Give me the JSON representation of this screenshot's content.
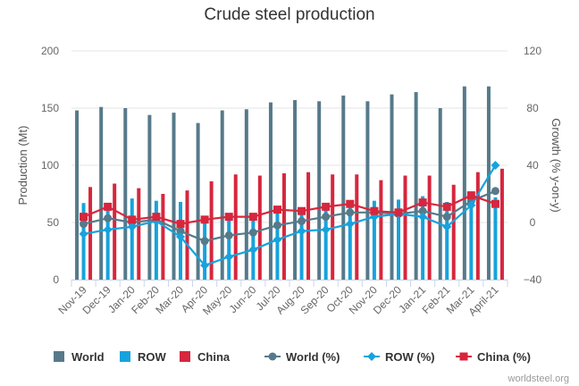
{
  "credit": "worldsteel.org",
  "colors": {
    "world": "#567a8a",
    "row": "#16a3dd",
    "china": "#d7263d",
    "grid": "#e6e6e6",
    "axis": "#ccd6eb"
  },
  "chart_data": {
    "type": "bar",
    "title": "Crude steel production",
    "ylabel": "Production (Mt)",
    "y2label": "Growth (% y-on-y)",
    "ylim": [
      0,
      200
    ],
    "y2lim": [
      -40,
      120
    ],
    "yticks": [
      "0",
      "50",
      "100",
      "150",
      "200"
    ],
    "y2ticks": [
      "−40",
      "0",
      "40",
      "80",
      "120"
    ],
    "grid": true,
    "legend_position": "bottom",
    "categories": [
      "Nov-19",
      "Dec-19",
      "Jan-20",
      "Feb-20",
      "Mar-20",
      "Apr-20",
      "May-20",
      "Jun-20",
      "Jul-20",
      "Aug-20",
      "Sep-20",
      "Oct-20",
      "Nov-20",
      "Dec-20",
      "Jan-21",
      "Feb-21",
      "Mar-21",
      "April-21"
    ],
    "series": [
      {
        "name": "World",
        "kind": "bar",
        "axis": "left",
        "color": "#567a8a",
        "values": [
          148,
          151,
          150,
          144,
          146,
          137,
          148,
          149,
          155,
          157,
          156,
          161,
          156,
          162,
          164,
          150,
          169,
          169
        ]
      },
      {
        "name": "ROW",
        "kind": "bar",
        "axis": "left",
        "color": "#16a3dd",
        "values": [
          67,
          67,
          71,
          69,
          68,
          50,
          57,
          58,
          60,
          61,
          64,
          68,
          69,
          70,
          73,
          68,
          77,
          72
        ]
      },
      {
        "name": "China",
        "kind": "bar",
        "axis": "left",
        "color": "#d7263d",
        "values": [
          81,
          84,
          80,
          75,
          78,
          86,
          92,
          91,
          93,
          94,
          92,
          92,
          87,
          91,
          91,
          83,
          94,
          97
        ]
      },
      {
        "name": "World (%)",
        "kind": "line",
        "axis": "right",
        "marker": "circle",
        "color": "#567a8a",
        "values": [
          -1,
          3,
          0,
          2,
          -6,
          -13,
          -9,
          -7,
          -2,
          1,
          4,
          7,
          7,
          6,
          8,
          4,
          15,
          22
        ]
      },
      {
        "name": "ROW (%)",
        "kind": "line",
        "axis": "right",
        "marker": "diamond",
        "color": "#16a3dd",
        "values": [
          -8,
          -5,
          -3,
          1,
          -10,
          -30,
          -24,
          -19,
          -12,
          -6,
          -5,
          -1,
          4,
          6,
          4,
          -3,
          12,
          40
        ]
      },
      {
        "name": "China (%)",
        "kind": "line",
        "axis": "right",
        "marker": "square",
        "color": "#d7263d",
        "values": [
          4,
          11,
          2,
          4,
          -1,
          2,
          4,
          4,
          9,
          8,
          11,
          13,
          8,
          7,
          14,
          11,
          19,
          13
        ]
      }
    ]
  }
}
